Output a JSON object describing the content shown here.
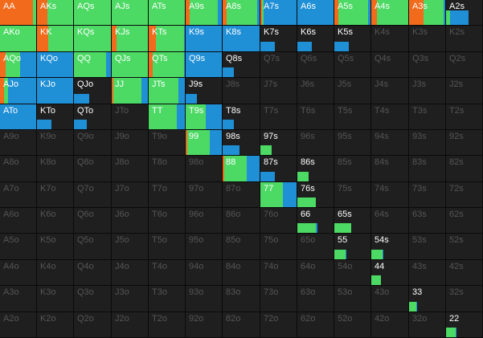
{
  "colors": {
    "raise": "#f26a1b",
    "call": "#4cd964",
    "fold": "#1f8fd6",
    "cell_bg": "#1f1f1f",
    "label_active": "#ffffff",
    "label_inactive": "#555555"
  },
  "ranks": [
    "A",
    "K",
    "Q",
    "J",
    "T",
    "9",
    "8",
    "7",
    "6",
    "5",
    "4",
    "3",
    "2"
  ],
  "grid": [
    [
      {
        "h": "AA",
        "s": [
          0.9,
          0.1,
          0
        ]
      },
      {
        "h": "AKs",
        "s": [
          0.28,
          0.72,
          0
        ]
      },
      {
        "h": "AQs",
        "s": [
          0,
          1,
          0
        ]
      },
      {
        "h": "AJs",
        "s": [
          0,
          1,
          0
        ]
      },
      {
        "h": "ATs",
        "s": [
          0,
          1,
          0
        ]
      },
      {
        "h": "A9s",
        "s": [
          0.1,
          0.75,
          0.15
        ]
      },
      {
        "h": "A8s",
        "s": [
          0.1,
          0.8,
          0.1
        ]
      },
      {
        "h": "A7s",
        "s": [
          0.05,
          0.05,
          0.9
        ]
      },
      {
        "h": "A6s",
        "s": [
          0,
          0,
          1
        ]
      },
      {
        "h": "A5s",
        "s": [
          0.1,
          0.8,
          0.1
        ]
      },
      {
        "h": "A4s",
        "s": [
          0.15,
          0.85,
          0
        ]
      },
      {
        "h": "A3s",
        "s": [
          0.4,
          0.55,
          0.05
        ]
      },
      {
        "h": "A2s",
        "s": [
          0,
          0.1,
          0.5
        ],
        "f": "up"
      }
    ],
    [
      {
        "h": "AKo",
        "s": [
          0,
          1,
          0
        ]
      },
      {
        "h": "KK",
        "s": [
          0.3,
          0.7,
          0
        ]
      },
      {
        "h": "KQs",
        "s": [
          0,
          1,
          0
        ]
      },
      {
        "h": "KJs",
        "s": [
          0.12,
          0.88,
          0
        ]
      },
      {
        "h": "KTs",
        "s": [
          0.2,
          0.75,
          0.05
        ]
      },
      {
        "h": "K9s",
        "s": [
          0,
          0,
          1
        ]
      },
      {
        "h": "K8s",
        "s": [
          0,
          0,
          1
        ]
      },
      {
        "h": "K7s",
        "s": [
          0,
          0,
          0.4
        ],
        "f": "down"
      },
      {
        "h": "K6s",
        "s": [
          0,
          0,
          0.4
        ],
        "f": "down"
      },
      {
        "h": "K5s",
        "s": [
          0,
          0,
          0.4
        ],
        "f": "down"
      },
      {
        "h": "K4s",
        "s": [
          0,
          0,
          0
        ]
      },
      {
        "h": "K3s",
        "s": [
          0,
          0,
          0
        ]
      },
      {
        "h": "K2s",
        "s": [
          0,
          0,
          0
        ]
      }
    ],
    [
      {
        "h": "AQo",
        "s": [
          0.15,
          0.4,
          0.45
        ]
      },
      {
        "h": "KQo",
        "s": [
          0,
          0,
          1
        ]
      },
      {
        "h": "QQ",
        "s": [
          0,
          0.85,
          0.15
        ]
      },
      {
        "h": "QJs",
        "s": [
          0,
          1,
          0
        ]
      },
      {
        "h": "QTs",
        "s": [
          0.1,
          0.85,
          0.05
        ]
      },
      {
        "h": "Q9s",
        "s": [
          0,
          0,
          1
        ]
      },
      {
        "h": "Q8s",
        "s": [
          0,
          0,
          0.3
        ],
        "f": "down"
      },
      {
        "h": "Q7s",
        "s": [
          0,
          0,
          0
        ]
      },
      {
        "h": "Q6s",
        "s": [
          0,
          0,
          0
        ]
      },
      {
        "h": "Q5s",
        "s": [
          0,
          0,
          0
        ]
      },
      {
        "h": "Q4s",
        "s": [
          0,
          0,
          0
        ]
      },
      {
        "h": "Q3s",
        "s": [
          0,
          0,
          0
        ]
      },
      {
        "h": "Q2s",
        "s": [
          0,
          0,
          0
        ]
      }
    ],
    [
      {
        "h": "AJo",
        "s": [
          0.1,
          0.1,
          0.8
        ]
      },
      {
        "h": "KJo",
        "s": [
          0,
          0,
          1
        ]
      },
      {
        "h": "QJo",
        "s": [
          0,
          0,
          0.4
        ],
        "f": "down"
      },
      {
        "h": "JJ",
        "s": [
          0.05,
          0.75,
          0.2
        ]
      },
      {
        "h": "JTs",
        "s": [
          0,
          0.8,
          0.2
        ]
      },
      {
        "h": "J9s",
        "s": [
          0,
          0,
          0.3
        ],
        "f": "down"
      },
      {
        "h": "J8s",
        "s": [
          0,
          0,
          0
        ]
      },
      {
        "h": "J7s",
        "s": [
          0,
          0,
          0
        ]
      },
      {
        "h": "J6s",
        "s": [
          0,
          0,
          0
        ]
      },
      {
        "h": "J5s",
        "s": [
          0,
          0,
          0
        ]
      },
      {
        "h": "J4s",
        "s": [
          0,
          0,
          0
        ]
      },
      {
        "h": "J3s",
        "s": [
          0,
          0,
          0
        ]
      },
      {
        "h": "J2s",
        "s": [
          0,
          0,
          0
        ]
      }
    ],
    [
      {
        "h": "ATo",
        "s": [
          0,
          0,
          1
        ]
      },
      {
        "h": "KTo",
        "s": [
          0,
          0,
          0.4
        ],
        "f": "down"
      },
      {
        "h": "QTo",
        "s": [
          0,
          0,
          0.35
        ],
        "f": "down"
      },
      {
        "h": "JTo",
        "s": [
          0,
          0,
          0
        ]
      },
      {
        "h": "TT",
        "s": [
          0,
          0.75,
          0.25
        ]
      },
      {
        "h": "T9s",
        "s": [
          0,
          0.55,
          0.45
        ]
      },
      {
        "h": "T8s",
        "s": [
          0,
          0,
          0.3
        ],
        "f": "down"
      },
      {
        "h": "T7s",
        "s": [
          0,
          0,
          0
        ]
      },
      {
        "h": "T6s",
        "s": [
          0,
          0,
          0
        ]
      },
      {
        "h": "T5s",
        "s": [
          0,
          0,
          0
        ]
      },
      {
        "h": "T4s",
        "s": [
          0,
          0,
          0
        ]
      },
      {
        "h": "T3s",
        "s": [
          0,
          0,
          0
        ]
      },
      {
        "h": "T2s",
        "s": [
          0,
          0,
          0
        ]
      }
    ],
    [
      {
        "h": "A9o",
        "s": [
          0,
          0,
          0
        ]
      },
      {
        "h": "K9o",
        "s": [
          0,
          0,
          0
        ]
      },
      {
        "h": "Q9o",
        "s": [
          0,
          0,
          0
        ]
      },
      {
        "h": "J9o",
        "s": [
          0,
          0,
          0
        ]
      },
      {
        "h": "T9o",
        "s": [
          0,
          0,
          0
        ]
      },
      {
        "h": "99",
        "s": [
          0.05,
          0.6,
          0.35
        ]
      },
      {
        "h": "98s",
        "s": [
          0,
          0,
          0.45
        ],
        "f": "down"
      },
      {
        "h": "97s",
        "s": [
          0,
          0.3,
          0
        ],
        "f": "down"
      },
      {
        "h": "96s",
        "s": [
          0,
          0,
          0
        ]
      },
      {
        "h": "95s",
        "s": [
          0,
          0,
          0
        ]
      },
      {
        "h": "94s",
        "s": [
          0,
          0,
          0
        ]
      },
      {
        "h": "93s",
        "s": [
          0,
          0,
          0
        ]
      },
      {
        "h": "92s",
        "s": [
          0,
          0,
          0
        ]
      }
    ],
    [
      {
        "h": "A8o",
        "s": [
          0,
          0,
          0
        ]
      },
      {
        "h": "K8o",
        "s": [
          0,
          0,
          0
        ]
      },
      {
        "h": "Q8o",
        "s": [
          0,
          0,
          0
        ]
      },
      {
        "h": "J8o",
        "s": [
          0,
          0,
          0
        ]
      },
      {
        "h": "T8o",
        "s": [
          0,
          0,
          0
        ]
      },
      {
        "h": "98o",
        "s": [
          0,
          0,
          0
        ]
      },
      {
        "h": "88",
        "s": [
          0.05,
          0.6,
          0.35
        ]
      },
      {
        "h": "87s",
        "s": [
          0,
          0,
          0.4
        ],
        "f": "down"
      },
      {
        "h": "86s",
        "s": [
          0,
          0.3,
          0
        ],
        "f": "down"
      },
      {
        "h": "85s",
        "s": [
          0,
          0,
          0
        ]
      },
      {
        "h": "84s",
        "s": [
          0,
          0,
          0
        ]
      },
      {
        "h": "83s",
        "s": [
          0,
          0,
          0
        ]
      },
      {
        "h": "82s",
        "s": [
          0,
          0,
          0
        ]
      }
    ],
    [
      {
        "h": "A7o",
        "s": [
          0,
          0,
          0
        ]
      },
      {
        "h": "K7o",
        "s": [
          0,
          0,
          0
        ]
      },
      {
        "h": "Q7o",
        "s": [
          0,
          0,
          0
        ]
      },
      {
        "h": "J7o",
        "s": [
          0,
          0,
          0
        ]
      },
      {
        "h": "T7o",
        "s": [
          0,
          0,
          0
        ]
      },
      {
        "h": "97o",
        "s": [
          0,
          0,
          0
        ]
      },
      {
        "h": "87o",
        "s": [
          0,
          0,
          0
        ]
      },
      {
        "h": "77",
        "s": [
          0,
          0.6,
          0.4
        ]
      },
      {
        "h": "76s",
        "s": [
          0,
          0.5,
          0
        ],
        "f": "down"
      },
      {
        "h": "75s",
        "s": [
          0,
          0,
          0
        ]
      },
      {
        "h": "74s",
        "s": [
          0,
          0,
          0
        ]
      },
      {
        "h": "73s",
        "s": [
          0,
          0,
          0
        ]
      },
      {
        "h": "72s",
        "s": [
          0,
          0,
          0
        ]
      }
    ],
    [
      {
        "h": "A6o",
        "s": [
          0,
          0,
          0
        ]
      },
      {
        "h": "K6o",
        "s": [
          0,
          0,
          0
        ]
      },
      {
        "h": "Q6o",
        "s": [
          0,
          0,
          0
        ]
      },
      {
        "h": "J6o",
        "s": [
          0,
          0,
          0
        ]
      },
      {
        "h": "T6o",
        "s": [
          0,
          0,
          0
        ]
      },
      {
        "h": "96o",
        "s": [
          0,
          0,
          0
        ]
      },
      {
        "h": "86o",
        "s": [
          0,
          0,
          0
        ]
      },
      {
        "h": "76o",
        "s": [
          0,
          0,
          0
        ]
      },
      {
        "h": "66",
        "s": [
          0,
          0.5,
          0.05
        ],
        "f": "down"
      },
      {
        "h": "65s",
        "s": [
          0,
          0.45,
          0
        ],
        "f": "down"
      },
      {
        "h": "64s",
        "s": [
          0,
          0,
          0
        ]
      },
      {
        "h": "63s",
        "s": [
          0,
          0,
          0
        ]
      },
      {
        "h": "62s",
        "s": [
          0,
          0,
          0
        ]
      }
    ],
    [
      {
        "h": "A5o",
        "s": [
          0,
          0,
          0
        ]
      },
      {
        "h": "K5o",
        "s": [
          0,
          0,
          0
        ]
      },
      {
        "h": "Q5o",
        "s": [
          0,
          0,
          0
        ]
      },
      {
        "h": "J5o",
        "s": [
          0,
          0,
          0
        ]
      },
      {
        "h": "T5o",
        "s": [
          0,
          0,
          0
        ]
      },
      {
        "h": "95o",
        "s": [
          0,
          0,
          0
        ]
      },
      {
        "h": "85o",
        "s": [
          0,
          0,
          0
        ]
      },
      {
        "h": "75o",
        "s": [
          0,
          0,
          0
        ]
      },
      {
        "h": "65o",
        "s": [
          0,
          0,
          0
        ]
      },
      {
        "h": "55",
        "s": [
          0,
          0.3,
          0.03
        ],
        "f": "down"
      },
      {
        "h": "54s",
        "s": [
          0,
          0.3,
          0.03
        ],
        "f": "down"
      },
      {
        "h": "53s",
        "s": [
          0,
          0,
          0
        ]
      },
      {
        "h": "52s",
        "s": [
          0,
          0,
          0
        ]
      }
    ],
    [
      {
        "h": "A4o",
        "s": [
          0,
          0,
          0
        ]
      },
      {
        "h": "K4o",
        "s": [
          0,
          0,
          0
        ]
      },
      {
        "h": "Q4o",
        "s": [
          0,
          0,
          0
        ]
      },
      {
        "h": "J4o",
        "s": [
          0,
          0,
          0
        ]
      },
      {
        "h": "T4o",
        "s": [
          0,
          0,
          0
        ]
      },
      {
        "h": "94o",
        "s": [
          0,
          0,
          0
        ]
      },
      {
        "h": "84o",
        "s": [
          0,
          0,
          0
        ]
      },
      {
        "h": "74o",
        "s": [
          0,
          0,
          0
        ]
      },
      {
        "h": "64o",
        "s": [
          0,
          0,
          0
        ]
      },
      {
        "h": "54o",
        "s": [
          0,
          0,
          0
        ]
      },
      {
        "h": "44",
        "s": [
          0,
          0.25,
          0
        ],
        "f": "down"
      },
      {
        "h": "43s",
        "s": [
          0,
          0,
          0
        ]
      },
      {
        "h": "42s",
        "s": [
          0,
          0,
          0
        ]
      }
    ],
    [
      {
        "h": "A3o",
        "s": [
          0,
          0,
          0
        ]
      },
      {
        "h": "K3o",
        "s": [
          0,
          0,
          0
        ]
      },
      {
        "h": "Q3o",
        "s": [
          0,
          0,
          0
        ]
      },
      {
        "h": "J3o",
        "s": [
          0,
          0,
          0
        ]
      },
      {
        "h": "T3o",
        "s": [
          0,
          0,
          0
        ]
      },
      {
        "h": "93o",
        "s": [
          0,
          0,
          0
        ]
      },
      {
        "h": "83o",
        "s": [
          0,
          0,
          0
        ]
      },
      {
        "h": "73o",
        "s": [
          0,
          0,
          0
        ]
      },
      {
        "h": "63o",
        "s": [
          0,
          0,
          0
        ]
      },
      {
        "h": "53o",
        "s": [
          0,
          0,
          0
        ]
      },
      {
        "h": "43o",
        "s": [
          0,
          0,
          0
        ]
      },
      {
        "h": "33",
        "s": [
          0,
          0.2,
          0.02
        ],
        "f": "down"
      },
      {
        "h": "32s",
        "s": [
          0,
          0,
          0
        ]
      }
    ],
    [
      {
        "h": "A2o",
        "s": [
          0,
          0,
          0
        ]
      },
      {
        "h": "K2o",
        "s": [
          0,
          0,
          0
        ]
      },
      {
        "h": "Q2o",
        "s": [
          0,
          0,
          0
        ]
      },
      {
        "h": "J2o",
        "s": [
          0,
          0,
          0
        ]
      },
      {
        "h": "T2o",
        "s": [
          0,
          0,
          0
        ]
      },
      {
        "h": "92o",
        "s": [
          0,
          0,
          0
        ]
      },
      {
        "h": "82o",
        "s": [
          0,
          0,
          0
        ]
      },
      {
        "h": "72o",
        "s": [
          0,
          0,
          0
        ]
      },
      {
        "h": "62o",
        "s": [
          0,
          0,
          0
        ]
      },
      {
        "h": "52o",
        "s": [
          0,
          0,
          0
        ]
      },
      {
        "h": "42o",
        "s": [
          0,
          0,
          0
        ]
      },
      {
        "h": "32o",
        "s": [
          0,
          0,
          0
        ]
      },
      {
        "h": "22",
        "s": [
          0,
          0.25,
          0.02
        ],
        "f": "down"
      }
    ]
  ]
}
